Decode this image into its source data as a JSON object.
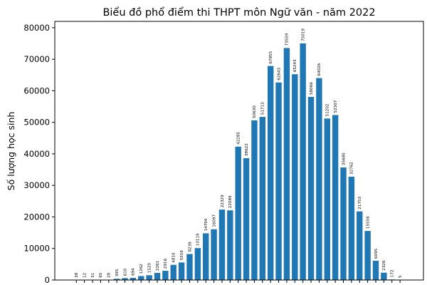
{
  "chart_data": {
    "type": "bar",
    "title": "Biểu đồ phổ điểm thi THPT môn Ngữ văn - năm 2022",
    "xlabel": "",
    "ylabel": "Số lượng học sinh",
    "ylim": [
      0,
      82000
    ],
    "yticks": [
      0,
      10000,
      20000,
      30000,
      40000,
      50000,
      60000,
      70000,
      80000
    ],
    "ytick_labels": [
      "0",
      "10000",
      "20000",
      "30000",
      "40000",
      "50000",
      "60000",
      "70000",
      "80000"
    ],
    "grid": false,
    "bar_color": "#1f77b4",
    "values": [
      38,
      12,
      51,
      65,
      28,
      395,
      610,
      694,
      1262,
      1520,
      2261,
      2916,
      4810,
      5559,
      8239,
      10119,
      14794,
      16097,
      22329,
      22089,
      42285,
      38622,
      50630,
      51713,
      67855,
      62643,
      73559,
      65243,
      75019,
      58066,
      64026,
      51202,
      52307,
      35680,
      32762,
      21753,
      15556,
      6095,
      2326,
      172,
      5
    ],
    "data_labels": [
      "38",
      "12",
      "51",
      "65",
      "28",
      "395",
      "610",
      "694",
      "1262",
      "1520",
      "2261",
      "2916",
      "4810",
      "5559",
      "8239",
      "10119",
      "14794",
      "16097",
      "22329",
      "22089",
      "42285",
      "38622",
      "50630",
      "51713",
      "67855",
      "62643",
      "73559",
      "65243",
      "75019",
      "58066",
      "64026",
      "51202",
      "52307",
      "35680",
      "32762",
      "21753",
      "15556",
      "6095",
      "2326",
      "172",
      "5"
    ]
  }
}
